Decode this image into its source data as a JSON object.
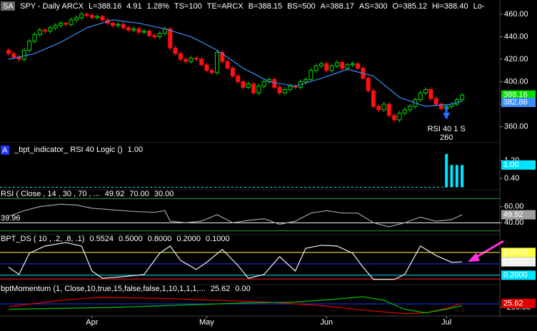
{
  "chart_data": [
    {
      "type": "candlestick",
      "tag": "SA",
      "quote": [
        {
          "text": "SPY - Daily ARCX",
          "color": "#ffffff"
        },
        {
          "text": "L=388.16",
          "color": "#c8ff00"
        },
        {
          "text": "4.91",
          "color": "#00ff00"
        },
        {
          "text": "1.28%",
          "color": "#00ff00"
        },
        {
          "text": "TS=100",
          "color": "#ffffff"
        },
        {
          "text": "TE=ARCX",
          "color": "#ffffff"
        },
        {
          "text": "B=388.15",
          "color": "#ffffff"
        },
        {
          "text": "BS=500",
          "color": "#ffffff"
        },
        {
          "text": "A=388.17",
          "color": "#ffffff"
        },
        {
          "text": "AS=300",
          "color": "#ffffff"
        },
        {
          "text": "O=385.12",
          "color": "#00ff00"
        },
        {
          "text": "Hi=388.40",
          "color": "#ffffff"
        },
        {
          "text": "Lo-",
          "color": "#ffffff"
        }
      ],
      "open": [
        428,
        425,
        422,
        420,
        428,
        436,
        442,
        446,
        445,
        448,
        450,
        452,
        451,
        455,
        457,
        460,
        459,
        457,
        458,
        455,
        452,
        450,
        451,
        448,
        446,
        447,
        444,
        445,
        441,
        440,
        443,
        447,
        430,
        425,
        420,
        418,
        421,
        420,
        415,
        410,
        408,
        426,
        418,
        412,
        405,
        400,
        395,
        398,
        390,
        396,
        400,
        402,
        395,
        390,
        393,
        396,
        395,
        400,
        402,
        410,
        414,
        416,
        410,
        414,
        417,
        412,
        415,
        416,
        412,
        403,
        392,
        378,
        375,
        380,
        370,
        366,
        372,
        375,
        378,
        384,
        390,
        393,
        385,
        380,
        376,
        378,
        380,
        384
      ],
      "close": [
        425,
        422,
        420,
        428,
        436,
        442,
        446,
        445,
        448,
        450,
        452,
        451,
        455,
        457,
        460,
        459,
        457,
        458,
        455,
        452,
        450,
        451,
        448,
        446,
        447,
        444,
        445,
        441,
        440,
        443,
        447,
        430,
        425,
        420,
        418,
        421,
        420,
        415,
        410,
        408,
        426,
        418,
        412,
        405,
        400,
        395,
        398,
        390,
        396,
        400,
        402,
        395,
        390,
        393,
        396,
        395,
        400,
        402,
        410,
        414,
        416,
        410,
        414,
        417,
        412,
        415,
        416,
        412,
        403,
        392,
        378,
        375,
        380,
        370,
        366,
        372,
        375,
        378,
        384,
        390,
        393,
        385,
        380,
        376,
        378,
        380,
        384,
        388.16
      ],
      "high": [
        430,
        427,
        424,
        430,
        438,
        444,
        448,
        448,
        450,
        452,
        454,
        454,
        457,
        459,
        462,
        462,
        461,
        460,
        460,
        457,
        454,
        453,
        453,
        450,
        449,
        449,
        447,
        447,
        443,
        445,
        449,
        449,
        432,
        427,
        422,
        423,
        423,
        422,
        417,
        412,
        428,
        428,
        420,
        414,
        407,
        402,
        400,
        400,
        398,
        402,
        404,
        404,
        397,
        395,
        398,
        398,
        402,
        404,
        412,
        416,
        418,
        418,
        416,
        419,
        419,
        417,
        418,
        418,
        414,
        405,
        394,
        380,
        382,
        382,
        372,
        374,
        377,
        380,
        386,
        392,
        395,
        395,
        387,
        382,
        380,
        382,
        386,
        390
      ],
      "low": [
        423,
        420,
        418,
        418,
        426,
        434,
        440,
        443,
        443,
        446,
        448,
        449,
        449,
        453,
        455,
        457,
        455,
        455,
        453,
        450,
        448,
        448,
        446,
        444,
        444,
        442,
        442,
        439,
        438,
        438,
        441,
        428,
        423,
        418,
        416,
        416,
        418,
        413,
        408,
        406,
        406,
        416,
        410,
        403,
        398,
        393,
        393,
        388,
        388,
        394,
        398,
        393,
        388,
        388,
        391,
        393,
        393,
        398,
        400,
        408,
        412,
        408,
        408,
        412,
        410,
        410,
        413,
        410,
        401,
        390,
        376,
        373,
        373,
        368,
        364,
        364,
        370,
        373,
        376,
        382,
        388,
        383,
        378,
        374,
        374,
        376,
        378,
        382
      ],
      "up_color": "#00e000",
      "down_color": "#ff1010",
      "series": [
        {
          "color": "#3d8fff",
          "x": [
            0,
            5,
            10,
            15,
            20,
            25,
            30,
            35,
            40,
            45,
            50,
            55,
            60,
            65,
            70,
            75,
            80,
            85,
            87
          ],
          "values": [
            420,
            425,
            435,
            448,
            455,
            452,
            447,
            440,
            428,
            412,
            400,
            396,
            403,
            411,
            405,
            386,
            378,
            380,
            382.86
          ]
        }
      ],
      "ylim": [
        347,
        469.5
      ],
      "yticks": [
        {
          "value": 360,
          "label": "360.00"
        },
        {
          "value": 380,
          "label": "380.00"
        },
        {
          "value": 400,
          "label": "400.00"
        },
        {
          "value": 420,
          "label": "420.00"
        },
        {
          "value": 440,
          "label": "440.00"
        },
        {
          "value": 460,
          "label": "460.00"
        }
      ],
      "xticks": [
        {
          "value": 16,
          "label": "Apr"
        },
        {
          "value": 38,
          "label": "May"
        },
        {
          "value": 61,
          "label": "Jun"
        },
        {
          "value": 84,
          "label": "Jul"
        }
      ],
      "signal": {
        "x": 84,
        "text": [
          "RSI 40 1 S",
          "260"
        ],
        "color": "#2a6dff"
      }
    },
    {
      "type": "bar",
      "tag": "A",
      "title": "_bpt_indicator_ RSI 40 Logic ()",
      "series": [
        {
          "color": "#00e5ff",
          "x": [
            84,
            85,
            86,
            87
          ],
          "values": [
            1.5,
            1,
            1,
            1
          ],
          "value_labels": [
            null,
            null,
            null,
            "1.00"
          ]
        }
      ],
      "ylim": [
        -0.08,
        1.94
      ],
      "yticks": [
        {
          "value": 1.2,
          "label": "1.20"
        },
        {
          "value": 0.4,
          "label": "0.40"
        }
      ]
    },
    {
      "type": "line",
      "title": "RSI ( Close , 14 , 30 , 70 , ...",
      "series": [
        {
          "color": "#a0a0a0",
          "x": [
            0,
            3,
            6,
            10,
            13,
            16,
            20,
            24,
            28,
            30,
            31,
            34,
            37,
            40,
            43,
            46,
            49,
            52,
            55,
            58,
            61,
            64,
            67,
            70,
            73,
            76,
            79,
            82,
            85,
            87
          ],
          "values": [
            48,
            55,
            60,
            63,
            62,
            58,
            56,
            54,
            53,
            55,
            42,
            40,
            42,
            50,
            40,
            43,
            45,
            38,
            42,
            52,
            55,
            52,
            52,
            40,
            35,
            40,
            47,
            42,
            44,
            49.92
          ]
        }
      ],
      "refs": [
        {
          "value": 70,
          "label": "70.00",
          "color": "#2e9a2e"
        },
        {
          "value": 30,
          "label": "30.00",
          "color": "#2e9a2e"
        }
      ],
      "level": {
        "value": 39.96,
        "color": "#ffffff"
      },
      "ylim": [
        27,
        80
      ],
      "yticks": [
        {
          "value": 60,
          "label": "60.00"
        },
        {
          "value": 40,
          "label": "40.00"
        }
      ]
    },
    {
      "type": "line",
      "title": "BPT_DS ( 10 , .2, .8, .1)",
      "series": [
        {
          "color": "#f0f0f0",
          "x": [
            0,
            2,
            4,
            7,
            11,
            14,
            16,
            18,
            22,
            26,
            29,
            31,
            33,
            36,
            38,
            41,
            44,
            46,
            49,
            52,
            55,
            57,
            60,
            63,
            66,
            68,
            70,
            74,
            76,
            79,
            82,
            85,
            87
          ],
          "values": [
            0.41,
            0.22,
            0.78,
            0.97,
            1.06,
            0.97,
            0.31,
            0.12,
            0.16,
            0.22,
            0.78,
            0.97,
            0.59,
            0.35,
            0.54,
            0.88,
            0.46,
            0.12,
            0.22,
            0.69,
            0.31,
            0.91,
            0.99,
            0.97,
            0.78,
            0.41,
            0.09,
            0.09,
            0.22,
            0.97,
            0.72,
            0.54,
            0.5524
          ]
        }
      ],
      "refs": [
        {
          "value": 0.5,
          "label": "0.5000",
          "color": "#2233ff",
          "boxed": false
        },
        {
          "value": 0.8,
          "label": "0.8000",
          "color": "#ffff40",
          "boxed": true
        },
        {
          "value": 0.2,
          "label": "0.2000",
          "color": "#00e5ff",
          "boxed": true
        },
        {
          "value": 0.1,
          "label": "0.1000",
          "color": "#ff2020",
          "boxed": false
        }
      ],
      "ylim": [
        -0.03,
        1.25
      ]
    },
    {
      "type": "line",
      "title": "bptMomentum (1, Close,10,true,15,false,false,1,10,1,1,1,...",
      "series": [
        {
          "color": "#e00000",
          "x": [
            0,
            10,
            18,
            30,
            40,
            50,
            60,
            70,
            76,
            80,
            84,
            87
          ],
          "values": [
            -150,
            200,
            380,
            300,
            200,
            100,
            -100,
            -400,
            -550,
            -500,
            -250,
            25.62
          ]
        },
        {
          "color": "#00c000",
          "x": [
            0,
            10,
            20,
            30,
            45,
            55,
            62,
            68,
            72,
            76,
            80,
            84,
            87
          ],
          "values": [
            -300,
            -250,
            -200,
            -100,
            50,
            100,
            250,
            400,
            200,
            -300,
            -500,
            -300,
            -100
          ]
        }
      ],
      "refs": [
        {
          "value": 0,
          "label": "0.00",
          "color": "#2233ff",
          "boxed": false
        }
      ],
      "ylim": [
        -640,
        1040
      ],
      "yticks": [
        {
          "value": -200,
          "label": "-200.00"
        }
      ]
    }
  ]
}
